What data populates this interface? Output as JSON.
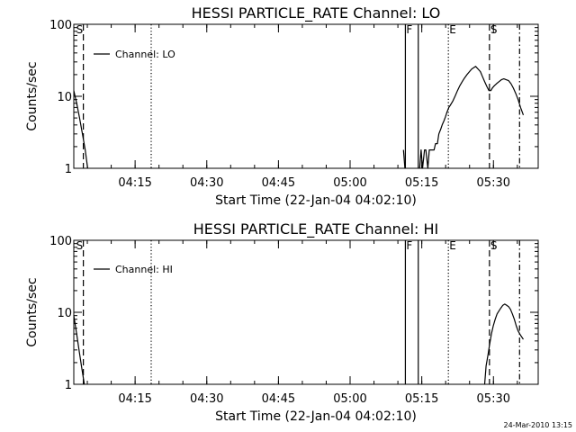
{
  "timestamp": "24-Mar-2010 13:15",
  "colors": {
    "foreground": "#000000",
    "background": "#ffffff"
  },
  "chart_data": [
    {
      "type": "line",
      "title": "HESSI PARTICLE_RATE Channel: LO",
      "xlabel": "Start Time (22-Jan-04 04:02:10)",
      "ylabel": "Counts/sec",
      "x_unit": "minutes after 04:02:10",
      "xlim": [
        0,
        97.2
      ],
      "ylim": [
        1,
        100
      ],
      "y_scale": "log",
      "x_ticks": [
        {
          "value": 12.833,
          "label": "04:15"
        },
        {
          "value": 27.833,
          "label": "04:30"
        },
        {
          "value": 42.833,
          "label": "04:45"
        },
        {
          "value": 57.833,
          "label": "05:00"
        },
        {
          "value": 72.833,
          "label": "05:15"
        },
        {
          "value": 87.833,
          "label": "05:30"
        }
      ],
      "y_ticks": [
        {
          "value": 1,
          "label": "1"
        },
        {
          "value": 10,
          "label": "10"
        },
        {
          "value": 100,
          "label": "100"
        }
      ],
      "legend": {
        "entries": [
          "Channel: LO"
        ],
        "position": "top-left"
      },
      "markers": [
        {
          "label": "S",
          "x": 0.3,
          "style": "none"
        },
        {
          "label": "",
          "x": 2.0,
          "style": "dashed"
        },
        {
          "label": "",
          "x": 16.2,
          "style": "dotted"
        },
        {
          "label": "F",
          "x": 69.4,
          "style": "solid"
        },
        {
          "label": "",
          "x": 72.1,
          "style": "solid"
        },
        {
          "label": "E",
          "x": 78.4,
          "style": "dotted"
        },
        {
          "label": "S",
          "x": 87.0,
          "style": "dashed"
        },
        {
          "label": "",
          "x": 93.3,
          "style": "dashdot"
        }
      ],
      "series": [
        {
          "name": "Channel: LO",
          "segments": [
            [
              [
                0,
                12
              ],
              [
                0.6,
                8
              ],
              [
                1.2,
                5
              ],
              [
                1.8,
                3
              ],
              [
                2.4,
                1.8
              ],
              [
                2.9,
                1
              ]
            ],
            [
              [
                69.0,
                1.8
              ],
              [
                69.3,
                1
              ]
            ],
            [
              [
                72.4,
                1
              ],
              [
                72.7,
                1.8
              ],
              [
                73.0,
                1
              ],
              [
                73.4,
                1.8
              ],
              [
                73.7,
                1.8
              ],
              [
                74.1,
                1
              ],
              [
                74.4,
                1.8
              ],
              [
                74.7,
                1.8
              ],
              [
                75.1,
                1.8
              ],
              [
                75.4,
                1.8
              ],
              [
                75.7,
                2.2
              ],
              [
                76.1,
                2.2
              ],
              [
                76.4,
                3
              ],
              [
                76.8,
                3.5
              ],
              [
                77.1,
                4
              ],
              [
                77.5,
                4.6
              ],
              [
                77.8,
                5.2
              ],
              [
                78.1,
                6
              ],
              [
                78.5,
                7
              ],
              [
                78.8,
                7.5
              ],
              [
                79.3,
                8.5
              ],
              [
                79.8,
                10
              ],
              [
                80.3,
                12
              ],
              [
                80.8,
                14
              ],
              [
                81.3,
                16
              ],
              [
                81.8,
                18
              ],
              [
                82.3,
                20
              ],
              [
                82.8,
                22
              ],
              [
                83.3,
                24
              ],
              [
                83.7,
                25
              ],
              [
                84.1,
                26
              ],
              [
                84.6,
                24
              ],
              [
                85.1,
                22
              ],
              [
                85.5,
                19
              ],
              [
                86.0,
                16
              ],
              [
                86.5,
                13.5
              ],
              [
                86.9,
                12
              ],
              [
                87.3,
                12
              ],
              [
                87.6,
                13
              ],
              [
                88.0,
                14
              ],
              [
                88.5,
                15
              ],
              [
                89.0,
                16
              ],
              [
                89.5,
                17
              ],
              [
                90.0,
                17.5
              ],
              [
                90.5,
                17
              ],
              [
                91.0,
                16.5
              ],
              [
                91.5,
                15
              ],
              [
                92.0,
                13
              ],
              [
                92.5,
                11
              ],
              [
                93.0,
                9
              ],
              [
                93.5,
                7
              ],
              [
                94.1,
                5.5
              ]
            ]
          ]
        }
      ]
    },
    {
      "type": "line",
      "title": "HESSI PARTICLE_RATE Channel: HI",
      "xlabel": "Start Time (22-Jan-04 04:02:10)",
      "ylabel": "Counts/sec",
      "x_unit": "minutes after 04:02:10",
      "xlim": [
        0,
        97.2
      ],
      "ylim": [
        1,
        100
      ],
      "y_scale": "log",
      "x_ticks": [
        {
          "value": 12.833,
          "label": "04:15"
        },
        {
          "value": 27.833,
          "label": "04:30"
        },
        {
          "value": 42.833,
          "label": "04:45"
        },
        {
          "value": 57.833,
          "label": "05:00"
        },
        {
          "value": 72.833,
          "label": "05:15"
        },
        {
          "value": 87.833,
          "label": "05:30"
        }
      ],
      "y_ticks": [
        {
          "value": 1,
          "label": "1"
        },
        {
          "value": 10,
          "label": "10"
        },
        {
          "value": 100,
          "label": "100"
        }
      ],
      "legend": {
        "entries": [
          "Channel: HI"
        ],
        "position": "top-left"
      },
      "markers": [
        {
          "label": "S",
          "x": 0.3,
          "style": "none"
        },
        {
          "label": "",
          "x": 2.0,
          "style": "dashed"
        },
        {
          "label": "",
          "x": 16.2,
          "style": "dotted"
        },
        {
          "label": "F",
          "x": 69.4,
          "style": "solid"
        },
        {
          "label": "",
          "x": 72.1,
          "style": "solid"
        },
        {
          "label": "E",
          "x": 78.4,
          "style": "dotted"
        },
        {
          "label": "S",
          "x": 87.0,
          "style": "dashed"
        },
        {
          "label": "",
          "x": 93.3,
          "style": "dashdot"
        }
      ],
      "series": [
        {
          "name": "Channel: HI",
          "segments": [
            [
              [
                0,
                9
              ],
              [
                0.6,
                5
              ],
              [
                1.1,
                3
              ],
              [
                1.6,
                1.8
              ],
              [
                2.2,
                1
              ]
            ],
            [
              [
                86.0,
                1
              ],
              [
                86.3,
                1.8
              ],
              [
                86.7,
                2.6
              ],
              [
                87.0,
                3.5
              ],
              [
                87.4,
                5
              ],
              [
                87.8,
                6.5
              ],
              [
                88.2,
                8
              ],
              [
                88.6,
                9.5
              ],
              [
                89.0,
                10.5
              ],
              [
                89.4,
                11.5
              ],
              [
                89.8,
                12.5
              ],
              [
                90.2,
                13
              ],
              [
                90.6,
                12.5
              ],
              [
                91.0,
                12
              ],
              [
                91.4,
                11
              ],
              [
                91.8,
                9.5
              ],
              [
                92.2,
                8
              ],
              [
                92.6,
                6.5
              ],
              [
                93.0,
                5.5
              ],
              [
                93.5,
                4.8
              ],
              [
                94.1,
                4.2
              ]
            ]
          ]
        }
      ]
    }
  ]
}
